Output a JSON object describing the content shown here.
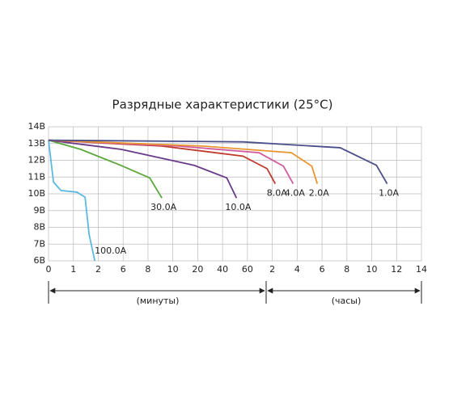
{
  "chart_data": {
    "type": "line",
    "title": "Разрядные характеристики (25°C)",
    "xlim": [
      0,
      15
    ],
    "ylim": [
      6,
      14
    ],
    "xticks": [
      0,
      1,
      {
        "value": 2,
        "label": "2"
      },
      {
        "value": 3,
        "label": "6"
      },
      {
        "value": 4,
        "label": "8"
      },
      {
        "value": 5,
        "label": "10"
      },
      {
        "value": 6,
        "label": "20"
      },
      {
        "value": 7,
        "label": "40"
      },
      {
        "value": 8,
        "label": "60"
      },
      {
        "value": 9,
        "label": "2"
      },
      {
        "value": 10,
        "label": "4"
      },
      {
        "value": 11,
        "label": "6"
      },
      {
        "value": 12,
        "label": "8"
      },
      {
        "value": 13,
        "label": "10"
      },
      {
        "value": 14,
        "label": "12"
      },
      {
        "value": 15,
        "label": "14"
      }
    ],
    "yticks": [
      {
        "value": 6,
        "label": "6В"
      },
      {
        "value": 7,
        "label": "7В"
      },
      {
        "value": 8,
        "label": "8В"
      },
      {
        "value": 9,
        "label": "9В"
      },
      {
        "value": 10,
        "label": "10В"
      },
      {
        "value": 11,
        "label": "11В"
      },
      {
        "value": 12,
        "label": "12В"
      },
      {
        "value": 13,
        "label": "13В"
      },
      {
        "value": 14,
        "label": "14В"
      }
    ],
    "grid": true,
    "annotations": [
      "(минуты)",
      "(часы)"
    ],
    "series": [
      {
        "name": "100.0A",
        "color": "#5bb8e0",
        "x": [
          0,
          0.2,
          0.5,
          1.14,
          1.47,
          1.63,
          1.86
        ],
        "values": [
          13.2,
          10.7,
          10.2,
          10.1,
          9.8,
          7.6,
          6.0
        ]
      },
      {
        "name": "30.0A",
        "color": "#5aa83c",
        "x": [
          0,
          1.3,
          2.9,
          4.07,
          4.56
        ],
        "values": [
          13.2,
          12.65,
          11.7,
          10.95,
          9.75
        ]
      },
      {
        "name": "10.0A",
        "color": "#6a3a8a",
        "x": [
          0,
          2.93,
          5.86,
          7.17,
          7.56
        ],
        "values": [
          13.2,
          12.65,
          11.7,
          10.95,
          9.75
        ]
      },
      {
        "name": "8.0A",
        "color": "#c0392b",
        "x": [
          0,
          4.56,
          7.82,
          8.79,
          9.12
        ],
        "values": [
          13.2,
          12.85,
          12.25,
          11.5,
          10.6
        ]
      },
      {
        "name": "4.0A",
        "color": "#d05aa0",
        "x": [
          0,
          5.21,
          8.47,
          9.45,
          9.84
        ],
        "values": [
          13.2,
          12.85,
          12.45,
          11.65,
          10.6
        ]
      },
      {
        "name": "2.0A",
        "color": "#e8962e",
        "x": [
          0,
          6.19,
          9.77,
          10.59,
          10.81
        ],
        "values": [
          13.2,
          12.85,
          12.45,
          11.65,
          10.6
        ]
      },
      {
        "name": "1.0A",
        "color": "#4a4f8a",
        "x": [
          0,
          7.82,
          11.73,
          13.19,
          13.62
        ],
        "values": [
          13.2,
          13.1,
          12.75,
          11.7,
          10.6
        ]
      }
    ]
  }
}
